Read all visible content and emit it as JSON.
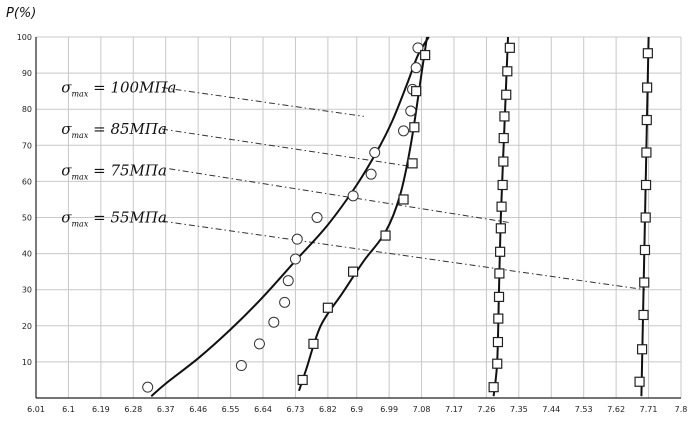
{
  "chart_data": {
    "type": "scatter",
    "ylabel": "P(%)",
    "xlabel": "",
    "xlim": [
      6.01,
      7.8
    ],
    "ylim": [
      0,
      100
    ],
    "x_ticks": [
      "6.01",
      "6.1",
      "6.19",
      "6.28",
      "6.37",
      "6.46",
      "6.55",
      "6.64",
      "6.73",
      "6.82",
      "6.9",
      "6.99",
      "7.08",
      "7.17",
      "7.26",
      "7.35",
      "7.44",
      "7.53",
      "7.62",
      "7.71",
      "7.8"
    ],
    "y_ticks": [
      "10",
      "20",
      "30",
      "40",
      "50",
      "60",
      "70",
      "80",
      "90",
      "100"
    ],
    "grid": true,
    "series": [
      {
        "marker": "circle",
        "points": [
          [
            6.32,
            3
          ],
          [
            6.58,
            9
          ],
          [
            6.63,
            15
          ],
          [
            6.67,
            21
          ],
          [
            6.7,
            26.5
          ],
          [
            6.71,
            32.5
          ],
          [
            6.73,
            38.5
          ],
          [
            6.735,
            44
          ],
          [
            6.79,
            50
          ],
          [
            6.89,
            56
          ],
          [
            6.94,
            62
          ],
          [
            6.95,
            68
          ],
          [
            7.03,
            74
          ],
          [
            7.05,
            79.5
          ],
          [
            7.055,
            85.5
          ],
          [
            7.065,
            91.5
          ],
          [
            7.07,
            97
          ]
        ],
        "curve": [
          [
            6.33,
            0.5
          ],
          [
            6.37,
            4
          ],
          [
            6.46,
            11
          ],
          [
            6.55,
            19
          ],
          [
            6.64,
            28
          ],
          [
            6.73,
            38
          ],
          [
            6.82,
            48
          ],
          [
            6.9,
            59
          ],
          [
            6.96,
            69
          ],
          [
            7.0,
            77
          ],
          [
            7.04,
            87
          ],
          [
            7.07,
            95
          ],
          [
            7.1,
            100
          ]
        ]
      },
      {
        "marker": "square",
        "points": [
          [
            6.75,
            5
          ],
          [
            6.78,
            15
          ],
          [
            6.82,
            25
          ],
          [
            6.89,
            35
          ],
          [
            6.98,
            45
          ],
          [
            7.03,
            55
          ],
          [
            7.055,
            65
          ],
          [
            7.06,
            75
          ],
          [
            7.065,
            85
          ],
          [
            7.09,
            95
          ]
        ],
        "curve": [
          [
            6.74,
            2
          ],
          [
            6.76,
            8
          ],
          [
            6.8,
            20
          ],
          [
            6.86,
            29
          ],
          [
            6.92,
            38
          ],
          [
            6.98,
            46
          ],
          [
            7.02,
            56
          ],
          [
            7.05,
            70
          ],
          [
            7.08,
            90
          ],
          [
            7.095,
            100
          ]
        ]
      },
      {
        "marker": "square",
        "points": [
          [
            7.28,
            3
          ],
          [
            7.29,
            9.5
          ],
          [
            7.292,
            15.5
          ],
          [
            7.293,
            22
          ],
          [
            7.295,
            28
          ],
          [
            7.296,
            34.5
          ],
          [
            7.298,
            40.5
          ],
          [
            7.3,
            47
          ],
          [
            7.302,
            53
          ],
          [
            7.305,
            59
          ],
          [
            7.307,
            65.5
          ],
          [
            7.308,
            72
          ],
          [
            7.31,
            78
          ],
          [
            7.315,
            84
          ],
          [
            7.318,
            90.5
          ],
          [
            7.325,
            97
          ]
        ],
        "curve": [
          [
            7.28,
            0.5
          ],
          [
            7.29,
            10
          ],
          [
            7.295,
            30
          ],
          [
            7.3,
            50
          ],
          [
            7.31,
            75
          ],
          [
            7.32,
            100
          ]
        ]
      },
      {
        "marker": "square",
        "points": [
          [
            7.685,
            4.5
          ],
          [
            7.692,
            13.5
          ],
          [
            7.696,
            23
          ],
          [
            7.698,
            32
          ],
          [
            7.7,
            41
          ],
          [
            7.702,
            50
          ],
          [
            7.703,
            59
          ],
          [
            7.704,
            68
          ],
          [
            7.705,
            77
          ],
          [
            7.706,
            86
          ],
          [
            7.708,
            95.5
          ]
        ],
        "curve": [
          [
            7.69,
            0.5
          ],
          [
            7.7,
            50
          ],
          [
            7.71,
            100
          ]
        ]
      }
    ],
    "annotations": [
      {
        "main": "σ",
        "sub": "max",
        "value": " = 100МПа",
        "anchor": [
          6.36,
          86
        ],
        "line_end": [
          6.92,
          78
        ]
      },
      {
        "main": "σ",
        "sub": "max",
        "value": " = 85МПа",
        "anchor": [
          6.36,
          74.5
        ],
        "line_end": [
          7.06,
          64
        ]
      },
      {
        "main": "σ",
        "sub": "max",
        "value": " = 75МПа",
        "anchor": [
          6.38,
          63.5
        ],
        "line_end": [
          7.33,
          48.5
        ]
      },
      {
        "main": "σ",
        "sub": "max",
        "value": " = 55МПа",
        "anchor": [
          6.36,
          49
        ],
        "line_end": [
          7.7,
          30
        ]
      }
    ],
    "annotation_text_pos": [
      [
        6.08,
        86
      ],
      [
        6.08,
        74.5
      ],
      [
        6.08,
        63
      ],
      [
        6.08,
        50
      ]
    ]
  }
}
